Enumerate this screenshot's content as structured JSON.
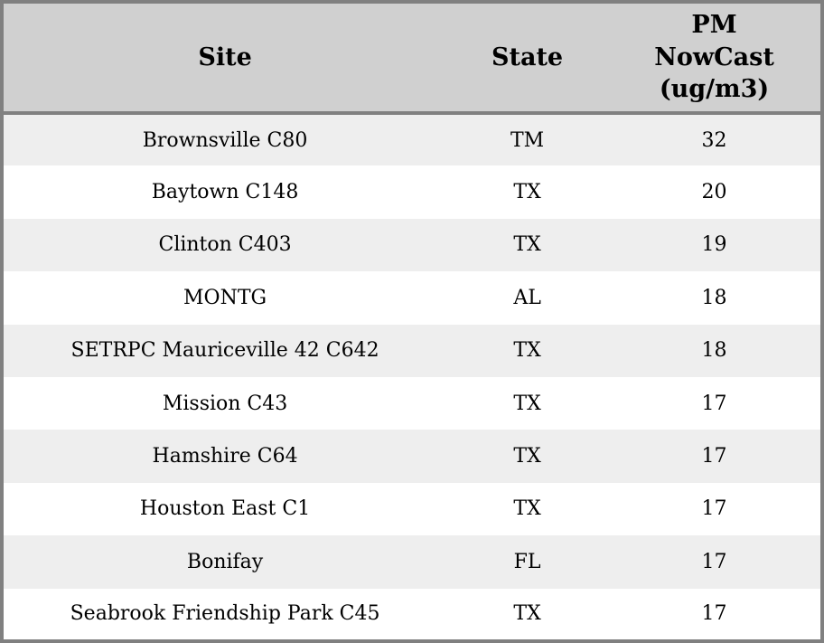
{
  "chart_data": {
    "type": "table",
    "columns": [
      "Site",
      "State",
      "PM NowCast (ug/m3)"
    ],
    "rows": [
      [
        "Brownsville C80",
        "TM",
        32
      ],
      [
        "Baytown C148",
        "TX",
        20
      ],
      [
        "Clinton C403",
        "TX",
        19
      ],
      [
        "MONTG",
        "AL",
        18
      ],
      [
        "SETRPC Mauriceville 42 C642",
        "TX",
        18
      ],
      [
        "Mission C43",
        "TX",
        17
      ],
      [
        "Hamshire C64",
        "TX",
        17
      ],
      [
        "Houston East C1",
        "TX",
        17
      ],
      [
        "Bonifay",
        "FL",
        17
      ],
      [
        "Seabrook Friendship Park C45",
        "TX",
        17
      ]
    ],
    "layout": {
      "legend": "none",
      "grid": "off",
      "striped_rows": true
    },
    "colors": {
      "header_bg": "#d0d0d0",
      "border": "#808080",
      "row_alt_bg": "#eeeeee",
      "row_bg": "#ffffff",
      "text": "#000000"
    }
  }
}
